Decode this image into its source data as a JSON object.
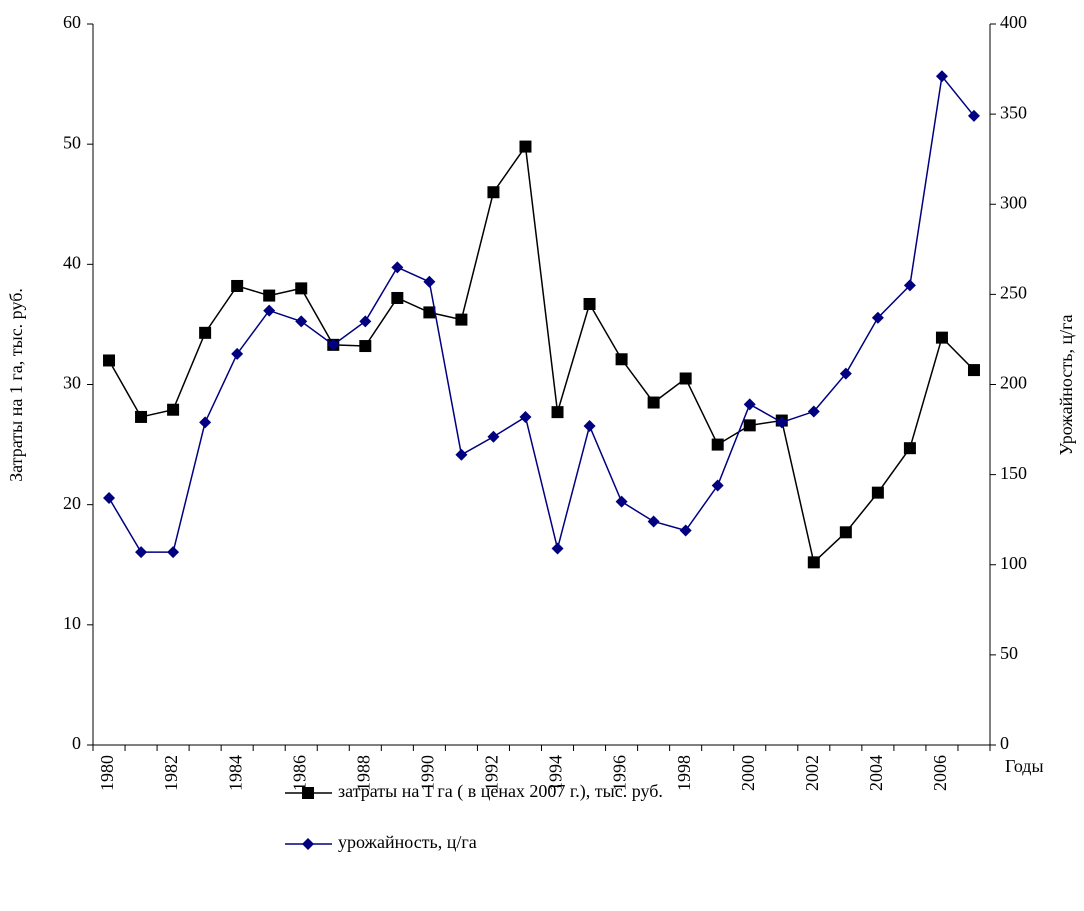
{
  "chart_data": {
    "type": "line",
    "y_label": "Затраты на 1 га, тыс. руб.",
    "y2_label": "Урожайность, ц/га",
    "x_label": "Годы",
    "categories": [
      "1980",
      null,
      "1982",
      null,
      "1984",
      null,
      "1986",
      null,
      "1988",
      null,
      "1990",
      null,
      "1992",
      null,
      "1994",
      null,
      "1996",
      null,
      "1998",
      null,
      "2000",
      null,
      "2002",
      null,
      "2004",
      null,
      "2006",
      null
    ],
    "series": [
      {
        "name": "затраты на 1 га ( в ценах 2007 г.), тыс. руб.",
        "color": "#000000",
        "marker": "square",
        "axis": "y",
        "values": [
          32.0,
          27.3,
          27.9,
          34.3,
          38.2,
          37.4,
          38.0,
          33.3,
          33.2,
          37.2,
          36.0,
          35.4,
          46.0,
          49.8,
          27.7,
          36.7,
          32.1,
          28.5,
          30.5,
          25.0,
          26.6,
          27.0,
          15.2,
          17.7,
          21.0,
          24.7,
          33.9,
          31.2
        ]
      },
      {
        "name": "урожайность, ц/га",
        "color": "#000080",
        "marker": "diamond",
        "axis": "y2",
        "values": [
          137,
          107,
          107,
          179,
          217,
          241,
          235,
          222,
          235,
          265,
          257,
          161,
          171,
          182,
          109,
          177,
          135,
          124,
          119,
          144,
          189,
          179,
          185,
          206,
          237,
          255,
          371,
          349
        ]
      }
    ],
    "ylim": [
      0,
      60
    ],
    "yticks": [
      0,
      10,
      20,
      30,
      40,
      50,
      60
    ],
    "y2lim": [
      0,
      400
    ],
    "y2ticks": [
      0,
      50,
      100,
      150,
      200,
      250,
      300,
      350,
      400
    ],
    "grid": false
  }
}
